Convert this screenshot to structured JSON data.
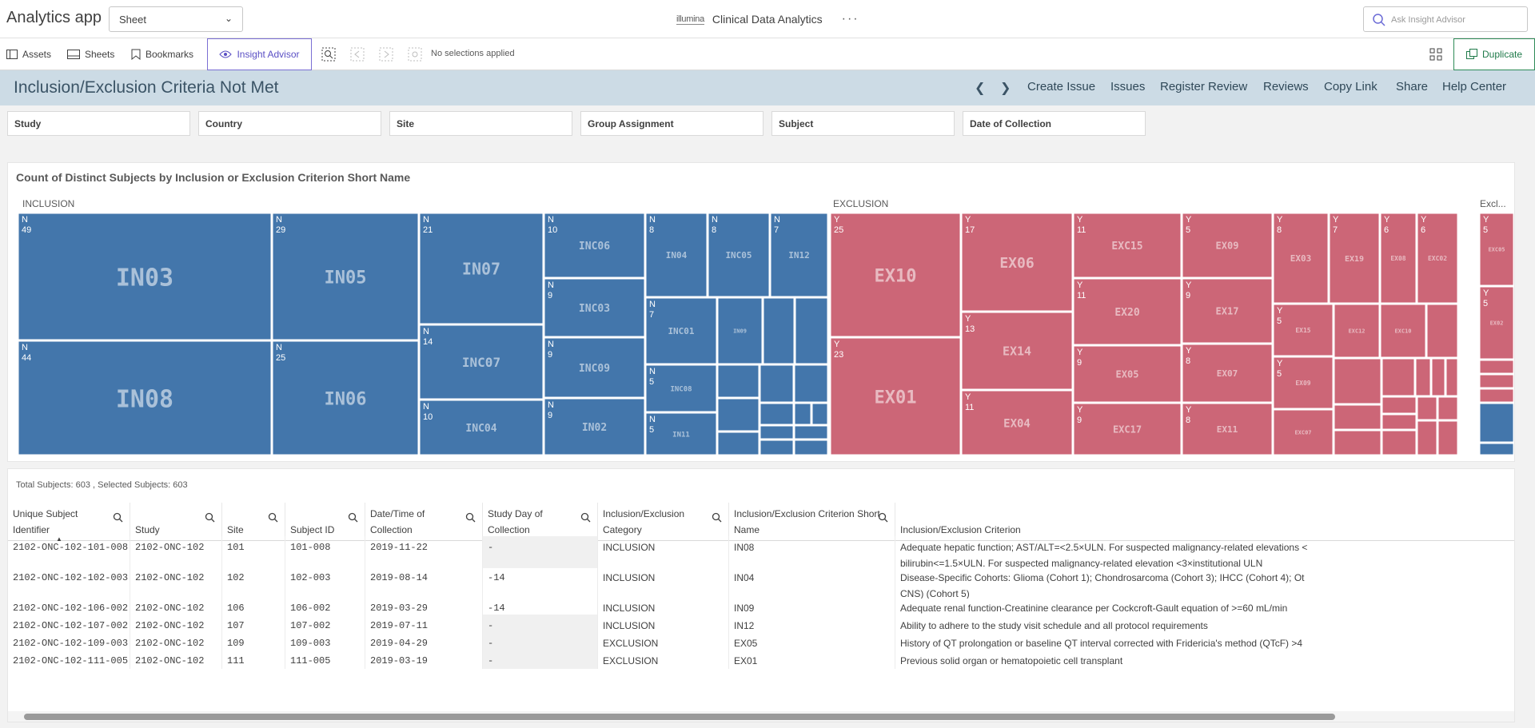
{
  "app": {
    "title": "Analytics app",
    "sheet_select": "Sheet",
    "brand_logo": "illumina",
    "brand_name": "Clinical Data Analytics",
    "ask_placeholder": "Ask Insight Advisor"
  },
  "toolbar": {
    "assets": "Assets",
    "sheets": "Sheets",
    "bookmarks": "Bookmarks",
    "insight_advisor": "Insight Advisor",
    "no_selections": "No selections applied",
    "duplicate": "Duplicate"
  },
  "titlebar": {
    "title": "Inclusion/Exclusion Criteria Not Met",
    "links": [
      "Create Issue",
      "Issues",
      "Register Review",
      "Reviews",
      "Copy Link",
      "Share",
      "Help Center"
    ]
  },
  "filters": [
    "Study",
    "Country",
    "Site",
    "Group Assignment",
    "Subject",
    "Date of Collection"
  ],
  "colors": {
    "inclusion": "#4376ab",
    "exclusion": "#cc6677",
    "accent": "#7b6fd4",
    "duplicate": "#2e8b57",
    "titlebar": "#ccdbe5"
  },
  "chart_data": {
    "type": "treemap",
    "title": "Count of Distinct Subjects by Inclusion or Exclusion Criterion Short Name",
    "groups": [
      {
        "name": "INCLUSION",
        "items": [
          {
            "label": "IN03",
            "flag": "N",
            "value": 49
          },
          {
            "label": "IN08",
            "flag": "N",
            "value": 44
          },
          {
            "label": "IN05",
            "flag": "N",
            "value": 29
          },
          {
            "label": "IN06",
            "flag": "N",
            "value": 25
          },
          {
            "label": "IN07",
            "flag": "N",
            "value": 21
          },
          {
            "label": "INC07",
            "flag": "N",
            "value": 14
          },
          {
            "label": "INC04",
            "flag": "N",
            "value": 10
          },
          {
            "label": "INC06",
            "flag": "N",
            "value": 10
          },
          {
            "label": "INC03",
            "flag": "N",
            "value": 9
          },
          {
            "label": "INC09",
            "flag": "N",
            "value": 9
          },
          {
            "label": "IN02",
            "flag": "N",
            "value": 9
          },
          {
            "label": "IN04",
            "flag": "N",
            "value": 8
          },
          {
            "label": "INC05",
            "flag": "N",
            "value": 8
          },
          {
            "label": "IN12",
            "flag": "N",
            "value": 7
          },
          {
            "label": "INC01",
            "flag": "N",
            "value": 7
          },
          {
            "label": "INC08",
            "flag": "N",
            "value": 5
          },
          {
            "label": "IN11",
            "flag": "N",
            "value": 5
          },
          {
            "label": "IN09"
          }
        ]
      },
      {
        "name": "EXCLUSION",
        "items": [
          {
            "label": "EX10",
            "flag": "Y",
            "value": 25
          },
          {
            "label": "EX01",
            "flag": "Y",
            "value": 23
          },
          {
            "label": "EX06",
            "flag": "Y",
            "value": 17
          },
          {
            "label": "EX14",
            "flag": "Y",
            "value": 13
          },
          {
            "label": "EX04",
            "flag": "Y",
            "value": 11
          },
          {
            "label": "EXC15",
            "flag": "Y",
            "value": 11
          },
          {
            "label": "EX20",
            "flag": "Y",
            "value": 11
          },
          {
            "label": "EX05",
            "flag": "Y",
            "value": 9
          },
          {
            "label": "EXC17",
            "flag": "Y",
            "value": 9
          },
          {
            "label": "EX09",
            "flag": "Y",
            "value": 9
          },
          {
            "label": "EX17",
            "flag": "Y",
            "value": 9
          },
          {
            "label": "EX07",
            "flag": "Y",
            "value": 8
          },
          {
            "label": "EX11",
            "flag": "Y",
            "value": 8
          },
          {
            "label": "EX03",
            "flag": "Y",
            "value": 8
          },
          {
            "label": "EX19",
            "flag": "Y",
            "value": 7
          },
          {
            "label": "EX08",
            "flag": "Y",
            "value": 6
          },
          {
            "label": "EXC02",
            "flag": "Y",
            "value": 6
          },
          {
            "label": "EX15",
            "flag": "Y",
            "value": 5
          },
          {
            "label": "EX09",
            "flag": "Y",
            "value": 5
          },
          {
            "label": "EXC12"
          },
          {
            "label": "EXC10"
          },
          {
            "label": "EXC07"
          }
        ]
      },
      {
        "name": "Excl...",
        "items": [
          {
            "label": "EXC05",
            "flag": "Y",
            "value": 5
          },
          {
            "label": "EX02",
            "flag": "Y",
            "value": 5
          }
        ]
      }
    ]
  },
  "table": {
    "totals": "Total Subjects: 603 , Selected Subjects: 603",
    "columns": [
      {
        "line1": "Unique Subject",
        "line2": "Identifier"
      },
      {
        "line1": "",
        "line2": "Study"
      },
      {
        "line1": "",
        "line2": "Site"
      },
      {
        "line1": "",
        "line2": "Subject ID"
      },
      {
        "line1": "Date/Time of",
        "line2": "Collection"
      },
      {
        "line1": "Study Day of",
        "line2": "Collection"
      },
      {
        "line1": "Inclusion/Exclusion",
        "line2": "Category"
      },
      {
        "line1": "Inclusion/Exclusion Criterion Short",
        "line2": "Name"
      },
      {
        "line1": "",
        "line2": "Inclusion/Exclusion Criterion"
      }
    ],
    "rows": [
      [
        "2102-ONC-102-101-008",
        "2102-ONC-102",
        "101",
        "101-008",
        "2019-11-22",
        "-",
        "INCLUSION",
        "IN08",
        "Adequate hepatic function; AST/ALT=<2.5×ULN. For suspected malignancy-related elevations <",
        "bilirubin<=1.5×ULN. For suspected malignancy-related elevation <3×institutional ULN"
      ],
      [
        "2102-ONC-102-102-003",
        "2102-ONC-102",
        "102",
        "102-003",
        "2019-08-14",
        "-14",
        "INCLUSION",
        "IN04",
        "Disease-Specific Cohorts: Glioma (Cohort 1); Chondrosarcoma (Cohort 3); IHCC (Cohort 4); Ot",
        "CNS) (Cohort 5)"
      ],
      [
        "2102-ONC-102-106-002",
        "2102-ONC-102",
        "106",
        "106-002",
        "2019-03-29",
        "-14",
        "INCLUSION",
        "IN09",
        "Adequate renal function-Creatinine clearance per Cockcroft-Gault equation of >=60 mL/min",
        ""
      ],
      [
        "2102-ONC-102-107-002",
        "2102-ONC-102",
        "107",
        "107-002",
        "2019-07-11",
        "-",
        "INCLUSION",
        "IN12",
        "Ability to adhere to the study visit schedule and all protocol requirements",
        ""
      ],
      [
        "2102-ONC-102-109-003",
        "2102-ONC-102",
        "109",
        "109-003",
        "2019-04-29",
        "-",
        "EXCLUSION",
        "EX05",
        "History of QT prolongation or baseline QT interval corrected with Fridericia's method (QTcF) >4",
        ""
      ],
      [
        "2102-ONC-102-111-005",
        "2102-ONC-102",
        "111",
        "111-005",
        "2019-03-19",
        "-",
        "EXCLUSION",
        "EX01",
        "Previous solid organ or hematopoietic cell transplant",
        ""
      ]
    ]
  }
}
